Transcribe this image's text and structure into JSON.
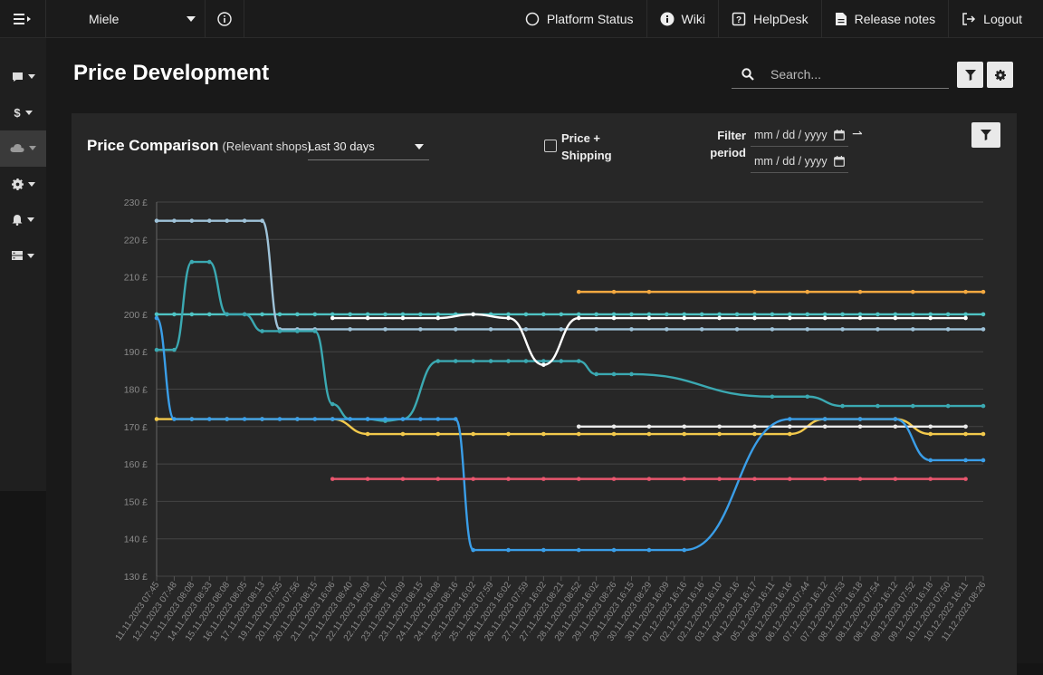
{
  "topbar": {
    "shop": "Miele",
    "links": [
      {
        "label": "Platform Status",
        "icon": "circle-icon"
      },
      {
        "label": "Wiki",
        "icon": "info-filled-icon"
      },
      {
        "label": "HelpDesk",
        "icon": "help-icon"
      },
      {
        "label": "Release notes",
        "icon": "document-icon"
      },
      {
        "label": "Logout",
        "icon": "logout-icon"
      }
    ]
  },
  "sidebar": {
    "items": [
      {
        "icon": "comment-icon"
      },
      {
        "icon": "dollar-icon"
      },
      {
        "icon": "cloud-icon",
        "active": true
      },
      {
        "icon": "gear-icon"
      },
      {
        "icon": "bell-icon"
      },
      {
        "icon": "server-icon"
      }
    ]
  },
  "page": {
    "title": "Price Development",
    "search_placeholder": "Search..."
  },
  "panel": {
    "title": "Price Comparison",
    "subtitle": "(Relevant shops)",
    "period": "Last 30 days",
    "price_shipping_line1": "Price +",
    "price_shipping_line2": "Shipping",
    "filter_label_line1": "Filter",
    "filter_label_line2": "period",
    "date_from": "mm / dd / yyyy",
    "date_to": "mm / dd / yyyy"
  },
  "chart_data": {
    "type": "line",
    "ylim": [
      130,
      230
    ],
    "y_ticks": [
      "130 £",
      "140 £",
      "150 £",
      "160 £",
      "170 £",
      "180 £",
      "190 £",
      "200 £",
      "210 £",
      "220 £",
      "230 £"
    ],
    "x": [
      "11.11.2023 07:45",
      "12.11.2023 07:48",
      "13.11.2023 08:08",
      "14.11.2023 08:33",
      "15.11.2023 08:08",
      "16.11.2023 08:05",
      "17.11.2023 08:13",
      "19.11.2023 07:55",
      "20.11.2023 07:56",
      "20.11.2023 08:15",
      "21.11.2023 16:06",
      "21.11.2023 08:40",
      "22.11.2023 16:09",
      "22.11.2023 08:17",
      "23.11.2023 16:09",
      "23.11.2023 08:15",
      "24.11.2023 16:08",
      "24.11.2023 08:16",
      "25.11.2023 16:02",
      "25.11.2023 07:59",
      "26.11.2023 16:02",
      "26.11.2023 07:59",
      "27.11.2023 16:02",
      "27.11.2023 08:21",
      "28.11.2023 08:52",
      "28.11.2023 16:02",
      "29.11.2023 08:26",
      "29.11.2023 16:15",
      "30.11.2023 08:29",
      "30.11.2023 16:09",
      "01.12.2023 16:16",
      "02.12.2023 16:16",
      "02.12.2023 16:10",
      "03.12.2023 16:16",
      "04.12.2023 16:17",
      "05.12.2023 16:11",
      "06.12.2023 16:16",
      "06.12.2023 07:44",
      "07.12.2023 16:12",
      "07.12.2023 07:53",
      "08.12.2023 16:18",
      "08.12.2023 07:54",
      "08.12.2023 16:12",
      "09.12.2023 07:52",
      "09.12.2023 16:18",
      "10.12.2023 07:50",
      "10.12.2023 16:11",
      "11.12.2023 08:26"
    ],
    "series": [
      {
        "color": "#4fc4c4",
        "points": [
          [
            0,
            200
          ],
          [
            1,
            200
          ],
          [
            2,
            200
          ],
          [
            3,
            200
          ],
          [
            4,
            200
          ],
          [
            5,
            200
          ],
          [
            6,
            200
          ],
          [
            7,
            200
          ],
          [
            8,
            200
          ],
          [
            9,
            200
          ],
          [
            10,
            200
          ],
          [
            11,
            200
          ],
          [
            12,
            200
          ],
          [
            13,
            200
          ],
          [
            14,
            200
          ],
          [
            15,
            200
          ],
          [
            16,
            200
          ],
          [
            17,
            200
          ],
          [
            18,
            200
          ],
          [
            19,
            200
          ],
          [
            20,
            200
          ],
          [
            21,
            200
          ],
          [
            22,
            200
          ],
          [
            23,
            200
          ],
          [
            24,
            200
          ],
          [
            25,
            200
          ],
          [
            26,
            200
          ],
          [
            27,
            200
          ],
          [
            28,
            200
          ],
          [
            29,
            200
          ],
          [
            30,
            200
          ],
          [
            31,
            200
          ],
          [
            32,
            200
          ],
          [
            33,
            200
          ],
          [
            34,
            200
          ],
          [
            35,
            200
          ],
          [
            36,
            200
          ],
          [
            37,
            200
          ],
          [
            38,
            200
          ],
          [
            39,
            200
          ],
          [
            40,
            200
          ],
          [
            41,
            200
          ],
          [
            42,
            200
          ],
          [
            43,
            200
          ],
          [
            44,
            200
          ],
          [
            45,
            200
          ],
          [
            46,
            200
          ],
          [
            47,
            200
          ]
        ]
      },
      {
        "color": "#9fc3d9",
        "points": [
          [
            0,
            225
          ],
          [
            1,
            225
          ],
          [
            2,
            225
          ],
          [
            3,
            225
          ],
          [
            4,
            225
          ],
          [
            5,
            225
          ],
          [
            6,
            225
          ],
          [
            7,
            196
          ],
          [
            8,
            196
          ],
          [
            9,
            196
          ],
          [
            11,
            196
          ],
          [
            13,
            196
          ],
          [
            15,
            196
          ],
          [
            17,
            196
          ],
          [
            19,
            196
          ],
          [
            21,
            196
          ],
          [
            23,
            196
          ],
          [
            25,
            196
          ],
          [
            27,
            196
          ],
          [
            29,
            196
          ],
          [
            31,
            196
          ],
          [
            33,
            196
          ],
          [
            35,
            196
          ],
          [
            37,
            196
          ],
          [
            39,
            196
          ],
          [
            41,
            196
          ],
          [
            43,
            196
          ],
          [
            45,
            196
          ],
          [
            47,
            196
          ]
        ]
      },
      {
        "color": "#3ba9b2",
        "points": [
          [
            0,
            190.5
          ],
          [
            1,
            190.5
          ],
          [
            2,
            214
          ],
          [
            3,
            214
          ],
          [
            4,
            200
          ],
          [
            5,
            200
          ],
          [
            6,
            195.5
          ],
          [
            7,
            195.5
          ],
          [
            8,
            195.5
          ],
          [
            9,
            195.5
          ],
          [
            10,
            176
          ],
          [
            11,
            172
          ],
          [
            12,
            172
          ],
          [
            13,
            171.5
          ],
          [
            14,
            172
          ],
          [
            16,
            187.5
          ],
          [
            17,
            187.5
          ],
          [
            18,
            187.5
          ],
          [
            19,
            187.5
          ],
          [
            20,
            187.5
          ],
          [
            21,
            187.5
          ],
          [
            22,
            187.5
          ],
          [
            23,
            187.5
          ],
          [
            24,
            187.5
          ],
          [
            25,
            184
          ],
          [
            26,
            184
          ],
          [
            27,
            184
          ],
          [
            35,
            178
          ],
          [
            37,
            178
          ],
          [
            39,
            175.5
          ],
          [
            41,
            175.5
          ],
          [
            43,
            175.5
          ],
          [
            45,
            175.5
          ],
          [
            47,
            175.5
          ]
        ]
      },
      {
        "color": "#f4a940",
        "points": [
          [
            24,
            206
          ],
          [
            26,
            206
          ],
          [
            28,
            206
          ],
          [
            34,
            206
          ],
          [
            37,
            206
          ],
          [
            40,
            206
          ],
          [
            43,
            206
          ],
          [
            46,
            206
          ],
          [
            47,
            206
          ]
        ]
      },
      {
        "color": "#ffffff",
        "points": [
          [
            10,
            199
          ],
          [
            12,
            199
          ],
          [
            14,
            199
          ],
          [
            16,
            199
          ],
          [
            18,
            200
          ],
          [
            20,
            199
          ],
          [
            22,
            186.5
          ],
          [
            24,
            199
          ],
          [
            26,
            199
          ],
          [
            28,
            199
          ],
          [
            30,
            199
          ],
          [
            32,
            199
          ],
          [
            34,
            199
          ],
          [
            36,
            199
          ],
          [
            38,
            199
          ],
          [
            40,
            199
          ],
          [
            42,
            199
          ],
          [
            44,
            199
          ],
          [
            46,
            199
          ]
        ]
      },
      {
        "color": "#f2c94c",
        "points": [
          [
            0,
            172
          ],
          [
            2,
            172
          ],
          [
            4,
            172
          ],
          [
            6,
            172
          ],
          [
            8,
            172
          ],
          [
            10,
            172
          ],
          [
            12,
            168
          ],
          [
            14,
            168
          ],
          [
            16,
            168
          ],
          [
            18,
            168
          ],
          [
            20,
            168
          ],
          [
            22,
            168
          ],
          [
            24,
            168
          ],
          [
            26,
            168
          ],
          [
            28,
            168
          ],
          [
            30,
            168
          ],
          [
            32,
            168
          ],
          [
            34,
            168
          ],
          [
            36,
            168
          ],
          [
            38,
            172
          ],
          [
            40,
            172
          ],
          [
            42,
            172
          ],
          [
            44,
            168
          ],
          [
            46,
            168
          ],
          [
            47,
            168
          ]
        ]
      },
      {
        "color": "#e9e9e9",
        "points": [
          [
            24,
            170
          ],
          [
            26,
            170
          ],
          [
            28,
            170
          ],
          [
            30,
            170
          ],
          [
            32,
            170
          ],
          [
            34,
            170
          ],
          [
            36,
            170
          ],
          [
            38,
            170
          ],
          [
            40,
            170
          ],
          [
            42,
            170
          ],
          [
            44,
            170
          ],
          [
            46,
            170
          ]
        ]
      },
      {
        "color": "#3a9ee8",
        "points": [
          [
            0,
            199
          ],
          [
            1,
            172
          ],
          [
            2,
            172
          ],
          [
            3,
            172
          ],
          [
            4,
            172
          ],
          [
            5,
            172
          ],
          [
            6,
            172
          ],
          [
            7,
            172
          ],
          [
            8,
            172
          ],
          [
            9,
            172
          ],
          [
            10,
            172
          ],
          [
            11,
            172
          ],
          [
            12,
            172
          ],
          [
            13,
            172
          ],
          [
            14,
            172
          ],
          [
            15,
            172
          ],
          [
            16,
            172
          ],
          [
            17,
            172
          ],
          [
            18,
            137
          ],
          [
            20,
            137
          ],
          [
            22,
            137
          ],
          [
            24,
            137
          ],
          [
            26,
            137
          ],
          [
            28,
            137
          ],
          [
            30,
            137
          ],
          [
            36,
            172
          ],
          [
            38,
            172
          ],
          [
            40,
            172
          ],
          [
            42,
            172
          ],
          [
            44,
            161
          ],
          [
            46,
            161
          ],
          [
            47,
            161
          ]
        ]
      },
      {
        "color": "#e8566e",
        "points": [
          [
            10,
            156
          ],
          [
            12,
            156
          ],
          [
            14,
            156
          ],
          [
            16,
            156
          ],
          [
            18,
            156
          ],
          [
            20,
            156
          ],
          [
            22,
            156
          ],
          [
            24,
            156
          ],
          [
            26,
            156
          ],
          [
            28,
            156
          ],
          [
            30,
            156
          ],
          [
            32,
            156
          ],
          [
            34,
            156
          ],
          [
            36,
            156
          ],
          [
            38,
            156
          ],
          [
            40,
            156
          ],
          [
            42,
            156
          ],
          [
            44,
            156
          ],
          [
            46,
            156
          ]
        ]
      }
    ]
  }
}
